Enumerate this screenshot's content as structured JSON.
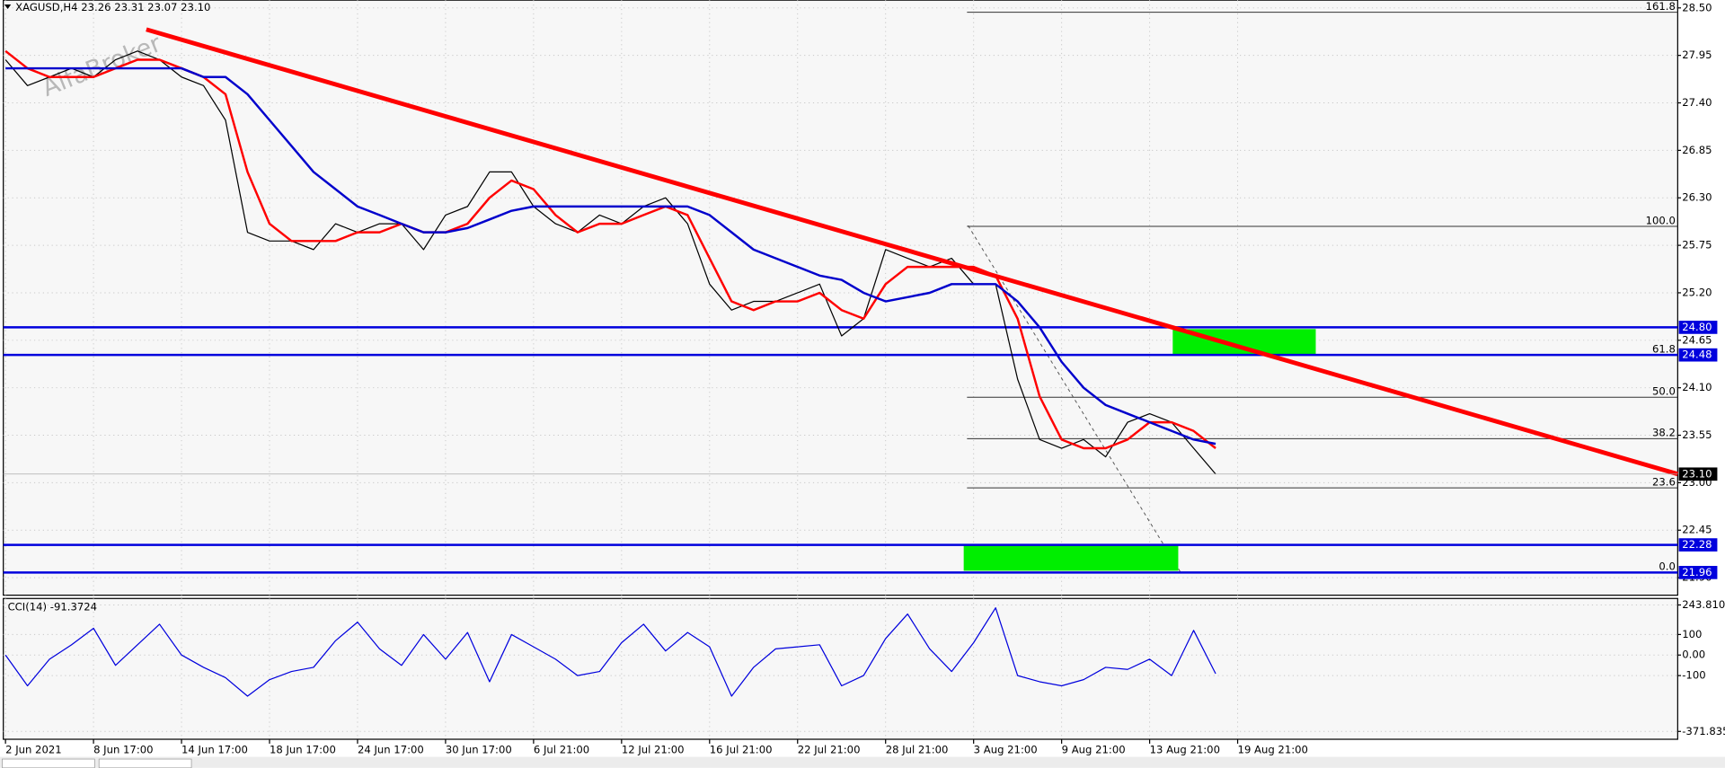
{
  "header": "XAGUSD,H4  23.26 23.31 23.07 23.10",
  "watermark": "AlfaBroker",
  "chart_data": [
    {
      "type": "line",
      "categories": [
        "2 Jun 2021",
        null,
        null,
        null,
        "8 Jun 17:00",
        null,
        null,
        null,
        "14 Jun 17:00",
        null,
        null,
        null,
        "18 Jun 17:00",
        null,
        null,
        null,
        "24 Jun 17:00",
        null,
        null,
        null,
        "30 Jun 17:00",
        null,
        null,
        null,
        "6 Jul 21:00",
        null,
        null,
        null,
        "12 Jul 21:00",
        null,
        null,
        null,
        "16 Jul 21:00",
        null,
        null,
        null,
        "22 Jul 21:00",
        null,
        null,
        null,
        "28 Jul 21:00",
        null,
        null,
        null,
        "3 Aug 21:00",
        null,
        null,
        null,
        "9 Aug 21:00",
        null,
        null,
        null,
        "13 Aug 21:00",
        null,
        null,
        null,
        "19 Aug 21:00"
      ],
      "series": [
        {
          "color": "#000000",
          "values": [
            27.9,
            27.6,
            27.7,
            27.8,
            27.7,
            27.9,
            28.0,
            27.9,
            27.7,
            27.6,
            27.2,
            25.9,
            25.8,
            25.8,
            25.7,
            26.0,
            25.9,
            26.0,
            26.0,
            25.7,
            26.1,
            26.2,
            26.6,
            26.6,
            26.2,
            26.0,
            25.9,
            26.1,
            26.0,
            26.2,
            26.3,
            26.0,
            25.3,
            25.0,
            25.1,
            25.1,
            25.2,
            25.3,
            24.7,
            24.9,
            25.7,
            25.6,
            25.5,
            25.6,
            25.3,
            25.3,
            24.2,
            23.5,
            23.4,
            23.5,
            23.3,
            23.7,
            23.8,
            23.7,
            23.4,
            23.1,
            null
          ]
        },
        {
          "color": "#ff0000",
          "values": [
            28.0,
            27.8,
            27.7,
            27.7,
            27.7,
            27.8,
            27.9,
            27.9,
            27.8,
            27.7,
            27.5,
            26.6,
            26.0,
            25.8,
            25.8,
            25.8,
            25.9,
            25.9,
            26.0,
            25.9,
            25.9,
            26.0,
            26.3,
            26.5,
            26.4,
            26.1,
            25.9,
            26.0,
            26.0,
            26.1,
            26.2,
            26.1,
            25.6,
            25.1,
            25.0,
            25.1,
            25.1,
            25.2,
            25.0,
            24.9,
            25.3,
            25.5,
            25.5,
            25.5,
            25.5,
            25.4,
            24.9,
            24.0,
            23.5,
            23.4,
            23.4,
            23.5,
            23.7,
            23.7,
            23.6,
            23.4,
            null
          ]
        },
        {
          "color": "#0000cc",
          "values": [
            27.8,
            27.8,
            27.8,
            27.8,
            27.8,
            27.8,
            27.8,
            27.8,
            27.8,
            27.7,
            27.7,
            27.5,
            27.2,
            26.9,
            26.6,
            26.4,
            26.2,
            26.1,
            26.0,
            25.9,
            25.9,
            25.95,
            26.05,
            26.15,
            26.2,
            26.2,
            26.2,
            26.2,
            26.2,
            26.2,
            26.2,
            26.2,
            26.1,
            25.9,
            25.7,
            25.6,
            25.5,
            25.4,
            25.35,
            25.2,
            25.1,
            25.15,
            25.2,
            25.3,
            25.3,
            25.3,
            25.1,
            24.8,
            24.4,
            24.1,
            23.9,
            23.8,
            23.7,
            23.6,
            23.5,
            23.45,
            null
          ]
        }
      ],
      "ylim": [
        21.71,
        28.59
      ],
      "yticks": [
        {
          "value": 28.5,
          "label": "28.50"
        },
        {
          "value": 27.95,
          "label": "27.95"
        },
        {
          "value": 27.4,
          "label": "27.40"
        },
        {
          "value": 26.85,
          "label": "26.85"
        },
        {
          "value": 26.3,
          "label": "26.30"
        },
        {
          "value": 25.75,
          "label": "25.75"
        },
        {
          "value": 25.2,
          "label": "25.20"
        },
        {
          "value": 24.65,
          "label": "24.65"
        },
        {
          "value": 24.1,
          "label": "24.10"
        },
        {
          "value": 23.55,
          "label": "23.55"
        },
        {
          "value": 23.0,
          "label": "23.00"
        },
        {
          "value": 22.45,
          "label": "22.45"
        },
        {
          "value": 21.9,
          "label": "21.90"
        }
      ],
      "grid": true,
      "levels": [
        {
          "value": 24.8,
          "label": "24.80"
        },
        {
          "value": 24.48,
          "label": "24.48"
        },
        {
          "value": 22.28,
          "label": "22.28"
        },
        {
          "value": 21.96,
          "label": "21.96"
        }
      ],
      "current": {
        "value": 23.1,
        "label": "23.10"
      },
      "fib_start": 43.7,
      "fib": [
        {
          "label": "161.8",
          "price": 28.45
        },
        {
          "label": "100.0",
          "price": 25.97
        },
        {
          "label": "61.8",
          "price": 24.48
        },
        {
          "label": "50.0",
          "price": 23.99
        },
        {
          "label": "38.2",
          "price": 23.51
        },
        {
          "label": "23.6",
          "price": 22.94
        },
        {
          "label": "0.0",
          "price": 21.96
        }
      ],
      "trendline": {
        "x": [
          6.4,
          76
        ],
        "y": [
          28.25,
          23.1
        ]
      },
      "zones": [
        {
          "x": [
            53.05,
            59.55
          ],
          "y": [
            24.78,
            24.48
          ]
        },
        {
          "x": [
            43.55,
            53.3
          ],
          "y": [
            22.27,
            21.98
          ]
        }
      ]
    },
    {
      "type": "line",
      "title": "CCI(14) -91.3724",
      "series": [
        {
          "color": "#0000dd",
          "values": [
            0,
            -150,
            -20,
            50,
            130,
            -50,
            50,
            150,
            0,
            -60,
            -110,
            -200,
            -120,
            -80,
            -60,
            70,
            160,
            30,
            -50,
            100,
            -20,
            110,
            -130,
            100,
            40,
            -20,
            -100,
            -80,
            60,
            150,
            20,
            110,
            40,
            -200,
            -60,
            30,
            40,
            50,
            -150,
            -100,
            80,
            200,
            30,
            -80,
            60,
            230,
            -100,
            -130,
            -150,
            -120,
            -60,
            -70,
            -20,
            -100,
            120,
            -91,
            null
          ]
        }
      ],
      "ylim": [
        -410,
        270
      ],
      "yticks": [
        {
          "value": 243.81,
          "label": "243.810"
        },
        100,
        {
          "value": 0,
          "label": "0.00"
        },
        -100,
        {
          "value": -371.835,
          "label": "-371.835"
        }
      ]
    }
  ]
}
